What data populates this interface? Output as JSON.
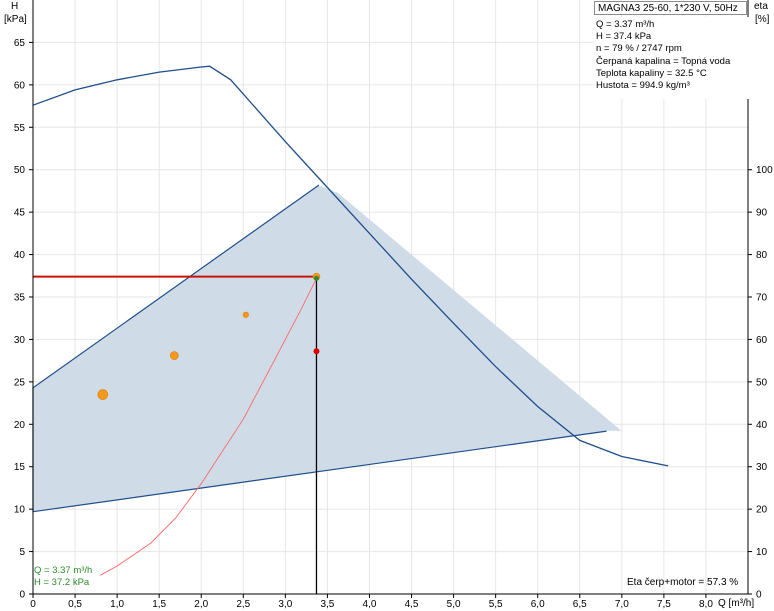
{
  "colors": {
    "curve": "#1f4e8c",
    "area_fill": "#cfdce8",
    "duty_line": "#cc1100",
    "efficiency_curve": "#ff6666",
    "operating_point_text": "#2c8c2c",
    "marker_orange": "#f39a1e",
    "marker_red": "#e00000",
    "marker_green": "#2c8c2c",
    "grid": "#e6e6e6"
  },
  "chart_data": {
    "type": "line",
    "title": "MAGNA3 25-60, 1*230 V, 50Hz",
    "xlabel": "Q [m³/h]",
    "ylabel": [
      "H",
      "[kPa]"
    ],
    "y2label": [
      "eta",
      "[%]"
    ],
    "xlim": [
      0,
      8.5
    ],
    "ylim": [
      0,
      70
    ],
    "y2lim": [
      0,
      140
    ],
    "x_ticks": [
      0,
      0.5,
      1.0,
      1.5,
      2.0,
      2.5,
      3.0,
      3.5,
      4.0,
      4.5,
      5.0,
      5.5,
      6.0,
      6.5,
      7.0,
      7.5,
      8.0
    ],
    "x_tick_labels": [
      "0",
      "0,5",
      "1,0",
      "1,5",
      "2,0",
      "2,5",
      "3,0",
      "3,5",
      "4,0",
      "4,5",
      "5,0",
      "5,5",
      "6,0",
      "6,5",
      "7,0",
      "7,5",
      "8,0"
    ],
    "y_ticks": [
      0,
      5,
      10,
      15,
      20,
      25,
      30,
      35,
      40,
      45,
      50,
      55,
      60,
      65
    ],
    "y2_ticks": [
      0,
      10,
      20,
      30,
      40,
      50,
      60,
      70,
      80,
      90,
      100
    ],
    "grid": true,
    "pump_curve": [
      [
        0,
        57.6
      ],
      [
        0.5,
        59.4
      ],
      [
        1.0,
        60.6
      ],
      [
        1.5,
        61.5
      ],
      [
        2.0,
        62.1
      ],
      [
        2.1,
        62.2
      ],
      [
        2.35,
        60.6
      ],
      [
        3.0,
        53.3
      ],
      [
        3.5,
        47.9
      ],
      [
        4.0,
        42.5
      ],
      [
        4.5,
        37.1
      ],
      [
        5.0,
        31.9
      ],
      [
        5.5,
        26.8
      ],
      [
        6.0,
        22.1
      ],
      [
        6.5,
        18.1
      ],
      [
        7.0,
        16.2
      ],
      [
        7.55,
        15.1
      ]
    ],
    "operating_area": [
      [
        0,
        24.3
      ],
      [
        3.4,
        48.2
      ],
      [
        3.62,
        47.3
      ],
      [
        7.0,
        19.2
      ],
      [
        6.82,
        19.2
      ],
      [
        0,
        9.7
      ]
    ],
    "efficiency_curve": [
      [
        0.8,
        2.2
      ],
      [
        1.0,
        3.3
      ],
      [
        1.4,
        6.0
      ],
      [
        1.7,
        9.0
      ],
      [
        2.0,
        13.0
      ],
      [
        2.5,
        20.6
      ],
      [
        2.9,
        28.1
      ],
      [
        3.2,
        33.8
      ],
      [
        3.37,
        37.2
      ]
    ],
    "duty_point": {
      "Q": 3.37,
      "H": 37.4
    },
    "operating_point": {
      "Q": 3.37,
      "H": 37.2
    },
    "markers": [
      {
        "Q": 0.83,
        "H": 23.5,
        "color": "orange",
        "size": 5
      },
      {
        "Q": 1.68,
        "H": 28.1,
        "color": "orange",
        "size": 4
      },
      {
        "Q": 2.53,
        "H": 32.9,
        "color": "orange",
        "size": 2.8
      },
      {
        "Q": 3.37,
        "H": 37.4,
        "color": "orange",
        "size": 3.5
      },
      {
        "Q": 3.37,
        "H": 28.6,
        "color": "red",
        "size": 3
      },
      {
        "Q": 3.37,
        "H": 37.2,
        "color": "green",
        "size": 2.5
      }
    ]
  },
  "info": {
    "lines": [
      "Q = 3.37 m³/h",
      "H = 37.4 kPa",
      "n = 79 % / 2747 rpm",
      "Čerpaná kapalina = Topná voda",
      "Teplota kapaliny = 32.5 °C",
      "Hustota = 994.9 kg/m³"
    ]
  },
  "operating_labels": {
    "q": "Q = 3.37 m³/h",
    "h": "H = 37.2 kPa"
  },
  "eta_note": "Eta čerp+motor = 57.3 %"
}
